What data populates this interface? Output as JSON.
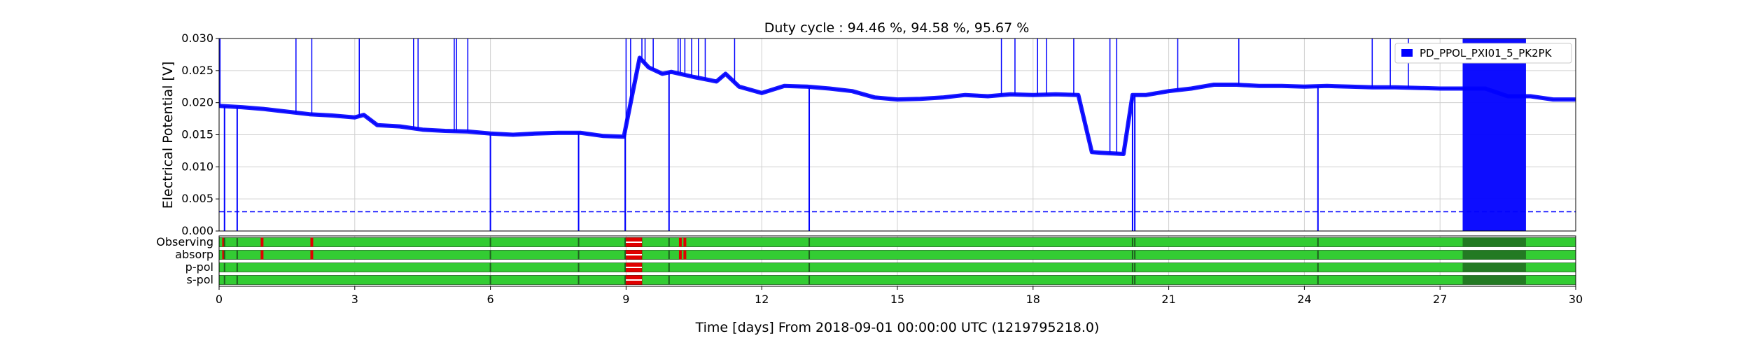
{
  "chart_data": {
    "type": "line",
    "title": "Duty cycle : 94.46 %, 94.58 %, 95.67 %",
    "xlabel": "Time [days] From 2018-09-01 00:00:00 UTC (1219795218.0)",
    "ylabel": "Electrical Potential [V]",
    "xlim": [
      0,
      30
    ],
    "ylim": [
      0,
      0.03
    ],
    "x_ticks": [
      "0",
      "3",
      "6",
      "9",
      "12",
      "15",
      "18",
      "21",
      "24",
      "27",
      "30"
    ],
    "y_ticks": [
      "0.000",
      "0.005",
      "0.010",
      "0.015",
      "0.020",
      "0.025",
      "0.030"
    ],
    "grid": true,
    "legend_position": "top-right",
    "color": "#0000ff",
    "threshold": 0.003,
    "series": [
      {
        "name": "PD_PPOL_PXI01_5_PK2PK",
        "x": [
          0,
          0.5,
          1,
          1.5,
          2,
          2.5,
          3,
          3.2,
          3.5,
          4,
          4.5,
          5,
          5.5,
          6,
          6.5,
          7,
          7.5,
          8,
          8.5,
          8.95,
          9.3,
          9.5,
          9.8,
          10,
          10.5,
          11,
          11.2,
          11.5,
          12,
          12.5,
          13,
          13.5,
          14,
          14.5,
          15,
          15.5,
          16,
          16.5,
          17,
          17.5,
          18,
          18.5,
          19,
          19.3,
          19.5,
          20,
          20.2,
          20.5,
          21,
          21.5,
          22,
          22.5,
          23,
          23.5,
          24,
          24.5,
          25,
          25.5,
          26,
          26.5,
          27,
          27.5,
          28,
          28.5,
          29,
          29.5,
          30
        ],
        "y": [
          0.0195,
          0.0193,
          0.019,
          0.0186,
          0.0182,
          0.018,
          0.0177,
          0.0181,
          0.0165,
          0.0163,
          0.0158,
          0.0156,
          0.0155,
          0.0152,
          0.015,
          0.0152,
          0.0153,
          0.0153,
          0.0148,
          0.0147,
          0.027,
          0.0255,
          0.0245,
          0.0248,
          0.024,
          0.0233,
          0.0245,
          0.0225,
          0.0215,
          0.0226,
          0.0225,
          0.0222,
          0.0218,
          0.0208,
          0.0205,
          0.0206,
          0.0208,
          0.0212,
          0.021,
          0.0213,
          0.0212,
          0.0213,
          0.0212,
          0.0123,
          0.0122,
          0.012,
          0.0212,
          0.0212,
          0.0218,
          0.0222,
          0.0228,
          0.0228,
          0.0226,
          0.0226,
          0.0225,
          0.0226,
          0.0225,
          0.0224,
          0.0224,
          0.0223,
          0.0222,
          0.0222,
          0.0222,
          0.021,
          0.021,
          0.0205,
          0.0205
        ],
        "dips_to_zero": [
          0.12,
          0.4,
          6.0,
          7.95,
          8.98,
          9.95,
          13.05,
          20.2,
          20.25,
          24.3
        ],
        "spikes_to_top": [
          0.02,
          1.7,
          2.05,
          3.1,
          4.3,
          4.4,
          5.2,
          5.25,
          5.5,
          9.0,
          9.1,
          9.35,
          9.42,
          9.6,
          10.15,
          10.2,
          10.3,
          10.45,
          10.6,
          10.75,
          11.4,
          17.3,
          17.6,
          18.1,
          18.3,
          18.9,
          19.7,
          19.85,
          21.2,
          22.55,
          25.5,
          25.9,
          26.3
        ],
        "dense_dropouts_range": [
          27.5,
          28.9
        ]
      }
    ],
    "flag_rows": [
      {
        "label": "Observing",
        "inactive": [
          [
            8.98,
            9.35
          ]
        ],
        "markers": [
          0.1,
          0.95,
          2.05,
          10.2,
          10.3
        ]
      },
      {
        "label": "absorp",
        "inactive": [
          [
            8.98,
            9.35
          ]
        ],
        "markers": [
          0.1,
          0.95,
          2.05,
          10.2,
          10.3
        ]
      },
      {
        "label": "p-pol",
        "inactive": [
          [
            8.98,
            9.35
          ]
        ],
        "markers": []
      },
      {
        "label": "s-pol",
        "inactive": [
          [
            8.98,
            9.35
          ]
        ],
        "markers": []
      }
    ],
    "flag_colors": {
      "active": "#33cc33",
      "inactive": "#e00000",
      "edge": "#1f5f1f"
    }
  }
}
